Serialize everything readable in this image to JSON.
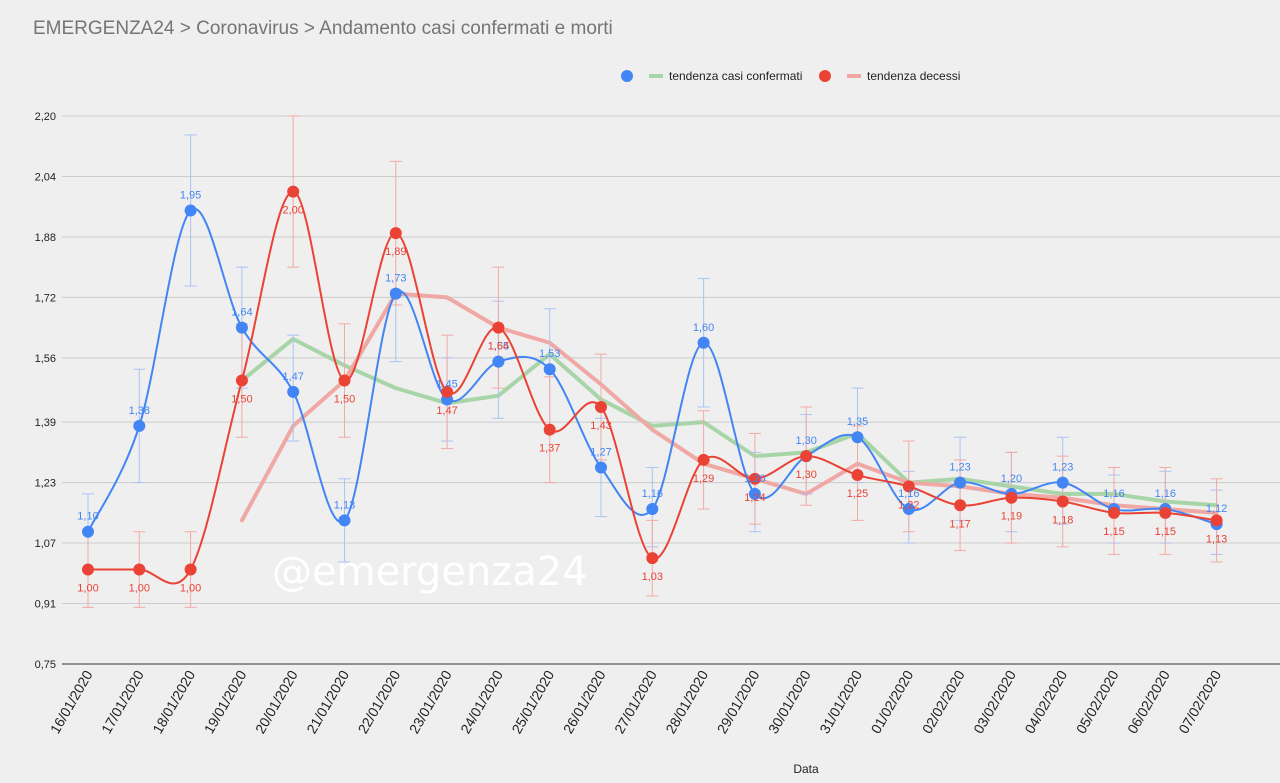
{
  "title": "EMERGENZA24 > Coronavirus > Andamento casi confermati e morti",
  "watermark": "@emergenza24",
  "chart_data": {
    "type": "line",
    "xlabel": "Data",
    "ylabel": "",
    "ylim": [
      0.75,
      2.2
    ],
    "yticks": [
      "0,75",
      "0,91",
      "1,07",
      "1,23",
      "1,39",
      "1,56",
      "1,72",
      "1,88",
      "2,04",
      "2,20"
    ],
    "ytick_values": [
      0.75,
      0.91,
      1.07,
      1.23,
      1.39,
      1.56,
      1.72,
      1.88,
      2.04,
      2.2
    ],
    "grid": true,
    "legend_position": "top-right",
    "legend": [
      "tendenza casi confermati",
      "tendenza decessi"
    ],
    "colors": {
      "confermati": "#4285f4",
      "decessi": "#ea4335",
      "trend_confermati": "#a8d5a8",
      "trend_decessi": "#f0a8a4",
      "error_confermati": "#a9c4f5",
      "error_decessi": "#f2aaa4"
    },
    "categories": [
      "16/01/2020",
      "17/01/2020",
      "18/01/2020",
      "19/01/2020",
      "20/01/2020",
      "21/01/2020",
      "22/01/2020",
      "23/01/2020",
      "24/01/2020",
      "25/01/2020",
      "26/01/2020",
      "27/01/2020",
      "28/01/2020",
      "29/01/2020",
      "30/01/2020",
      "31/01/2020",
      "01/02/2020",
      "02/02/2020",
      "03/02/2020",
      "04/02/2020",
      "05/02/2020",
      "06/02/2020",
      "07/02/2020"
    ],
    "series": [
      {
        "key": "confermati",
        "values": [
          1.1,
          1.38,
          1.95,
          1.64,
          1.47,
          1.13,
          1.73,
          1.45,
          1.55,
          1.53,
          1.27,
          1.16,
          1.6,
          1.2,
          1.3,
          1.35,
          1.16,
          1.23,
          1.2,
          1.23,
          1.16,
          1.16,
          1.12
        ],
        "labels": [
          "1,10",
          "1,38",
          "1,95",
          "1,64",
          "1,47",
          "1,13",
          "1,73",
          "1,45",
          "1,55",
          "1,53",
          "1,27",
          "1,16",
          "1,60",
          "1,20",
          "1,30",
          "1,35",
          "1,16",
          "1,23",
          "1,20",
          "1,23",
          "1,16",
          "1,16",
          "1,12"
        ]
      },
      {
        "key": "decessi",
        "values": [
          1.0,
          1.0,
          1.0,
          1.5,
          2.0,
          1.5,
          1.89,
          1.47,
          1.64,
          1.37,
          1.43,
          1.03,
          1.29,
          1.24,
          1.3,
          1.25,
          1.22,
          1.17,
          1.19,
          1.18,
          1.15,
          1.15,
          1.13
        ],
        "labels": [
          "1,00",
          "1,00",
          "1,00",
          "1,50",
          "2,00",
          "1,50",
          "1,89",
          "1,47",
          "1,64",
          "1,37",
          "1,43",
          "1,03",
          "1,29",
          "1,24",
          "1,30",
          "1,25",
          "1,22",
          "1,17",
          "1,19",
          "1,18",
          "1,15",
          "1,15",
          "1,13"
        ]
      }
    ],
    "trend_series": [
      {
        "name": "tendenza casi confermati",
        "values": [
          null,
          null,
          null,
          1.5,
          1.61,
          1.54,
          1.48,
          1.44,
          1.46,
          1.57,
          1.45,
          1.38,
          1.39,
          1.3,
          1.31,
          1.36,
          1.23,
          1.24,
          1.22,
          1.2,
          1.2,
          1.18,
          1.17
        ]
      },
      {
        "name": "tendenza decessi",
        "values": [
          null,
          null,
          null,
          1.13,
          1.38,
          1.5,
          1.73,
          1.72,
          1.64,
          1.6,
          1.49,
          1.37,
          1.28,
          1.24,
          1.2,
          1.28,
          1.23,
          1.22,
          1.2,
          1.19,
          1.17,
          1.16,
          1.15
        ]
      }
    ],
    "error_bars": {
      "confermati": [
        [
          1.0,
          1.2
        ],
        [
          1.23,
          1.53
        ],
        [
          1.75,
          2.15
        ],
        [
          1.48,
          1.8
        ],
        [
          1.34,
          1.62
        ],
        [
          1.02,
          1.24
        ],
        [
          1.55,
          1.74
        ],
        [
          1.34,
          1.56
        ],
        [
          1.4,
          1.71
        ],
        [
          1.36,
          1.69
        ],
        [
          1.14,
          1.4
        ],
        [
          1.06,
          1.27
        ],
        [
          1.43,
          1.77
        ],
        [
          1.1,
          1.31
        ],
        [
          1.2,
          1.41
        ],
        [
          1.23,
          1.48
        ],
        [
          1.07,
          1.26
        ],
        [
          1.13,
          1.35
        ],
        [
          1.1,
          1.31
        ],
        [
          1.12,
          1.35
        ],
        [
          1.07,
          1.25
        ],
        [
          1.07,
          1.26
        ],
        [
          1.04,
          1.21
        ]
      ],
      "decessi": [
        [
          0.9,
          1.1
        ],
        [
          0.9,
          1.1
        ],
        [
          0.9,
          1.1
        ],
        [
          1.35,
          1.65
        ],
        [
          1.8,
          2.2
        ],
        [
          1.35,
          1.65
        ],
        [
          1.7,
          2.08
        ],
        [
          1.32,
          1.62
        ],
        [
          1.48,
          1.8
        ],
        [
          1.23,
          1.51
        ],
        [
          1.29,
          1.57
        ],
        [
          0.93,
          1.13
        ],
        [
          1.16,
          1.42
        ],
        [
          1.12,
          1.36
        ],
        [
          1.17,
          1.43
        ],
        [
          1.13,
          1.38
        ],
        [
          1.1,
          1.34
        ],
        [
          1.05,
          1.29
        ],
        [
          1.07,
          1.31
        ],
        [
          1.06,
          1.3
        ],
        [
          1.04,
          1.27
        ],
        [
          1.04,
          1.27
        ],
        [
          1.02,
          1.24
        ]
      ]
    }
  }
}
